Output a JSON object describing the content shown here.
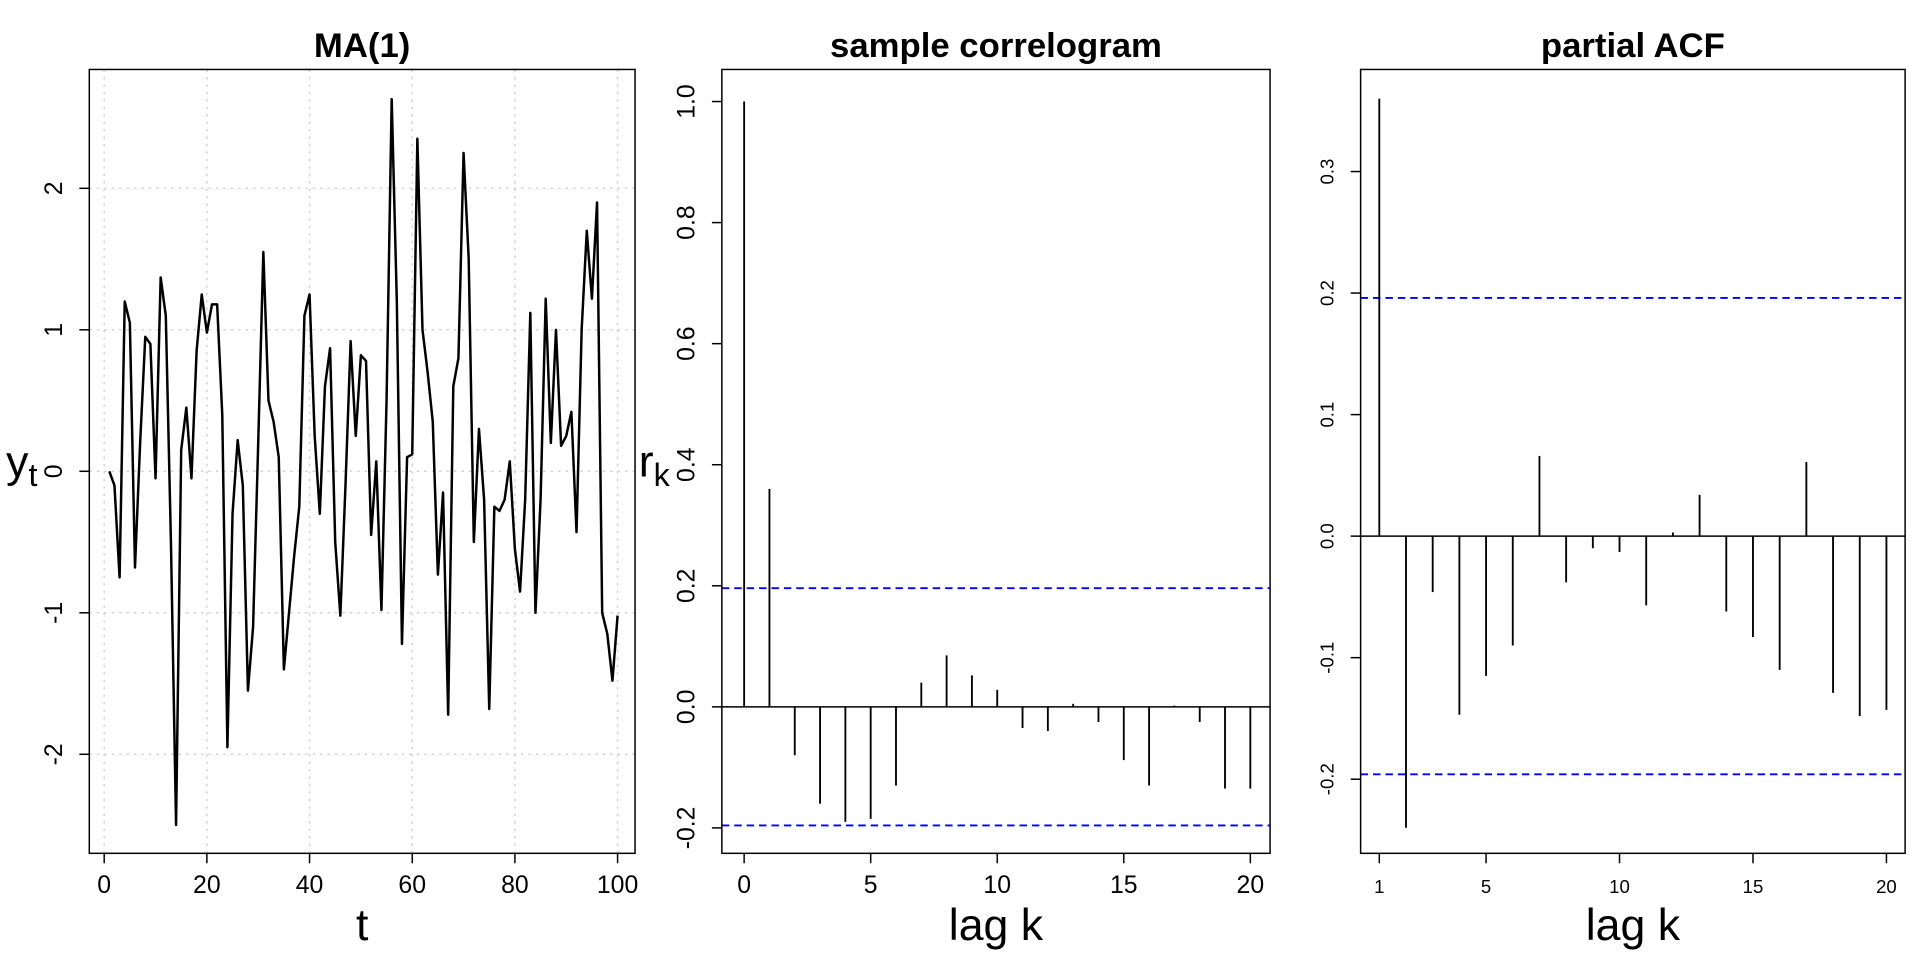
{
  "chart_data": [
    {
      "type": "line",
      "title": "MA(1)",
      "xlabel": "t",
      "ylabel": "y",
      "ylabel_sub": "t",
      "color": "#000000",
      "grid": true,
      "x": [
        1,
        2,
        3,
        4,
        5,
        6,
        7,
        8,
        9,
        10,
        11,
        12,
        13,
        14,
        15,
        16,
        17,
        18,
        19,
        20,
        21,
        22,
        23,
        24,
        25,
        26,
        27,
        28,
        29,
        30,
        31,
        32,
        33,
        34,
        35,
        36,
        37,
        38,
        39,
        40,
        41,
        42,
        43,
        44,
        45,
        46,
        47,
        48,
        49,
        50,
        51,
        52,
        53,
        54,
        55,
        56,
        57,
        58,
        59,
        60,
        61,
        62,
        63,
        64,
        65,
        66,
        67,
        68,
        69,
        70,
        71,
        72,
        73,
        74,
        75,
        76,
        77,
        78,
        79,
        80,
        81,
        82,
        83,
        84,
        85,
        86,
        87,
        88,
        89,
        90,
        91,
        92,
        93,
        94,
        95,
        96,
        97,
        98,
        99,
        100
      ],
      "values": [
        0.0,
        -0.1,
        -0.75,
        1.2,
        1.05,
        -0.68,
        0.2,
        0.95,
        0.9,
        -0.05,
        1.37,
        1.1,
        -0.5,
        -2.5,
        0.15,
        0.45,
        -0.05,
        0.85,
        1.25,
        0.98,
        1.18,
        1.18,
        0.4,
        -1.95,
        -0.3,
        0.22,
        -0.1,
        -1.55,
        -1.1,
        0.2,
        1.55,
        0.5,
        0.35,
        0.1,
        -1.4,
        -1.0,
        -0.6,
        -0.25,
        1.1,
        1.25,
        0.25,
        -0.3,
        0.6,
        0.87,
        -0.5,
        -1.02,
        -0.1,
        0.92,
        0.25,
        0.82,
        0.78,
        -0.45,
        0.07,
        -0.98,
        0.5,
        2.63,
        1.2,
        -1.22,
        0.1,
        0.12,
        2.35,
        1.0,
        0.7,
        0.35,
        -0.73,
        -0.15,
        -1.72,
        0.6,
        0.8,
        2.25,
        1.5,
        -0.5,
        0.3,
        -0.2,
        -1.68,
        -0.25,
        -0.28,
        -0.2,
        0.07,
        -0.55,
        -0.85,
        -0.2,
        1.12,
        -1.0,
        -0.2,
        1.22,
        0.2,
        1.0,
        0.18,
        0.25,
        0.42,
        -0.43,
        1.0,
        1.7,
        1.22,
        1.9,
        -1.0,
        -1.15,
        -1.48,
        -1.02
      ],
      "xlim": [
        -2.9,
        103.4
      ],
      "ylim": [
        -2.7,
        2.84
      ],
      "xticks": [
        0,
        20,
        40,
        60,
        80,
        100
      ],
      "yticks": [
        -2,
        -1,
        0,
        1,
        2
      ]
    },
    {
      "type": "bar",
      "title": "sample correlogram",
      "xlabel": "lag k",
      "ylabel": "r",
      "ylabel_sub": "k",
      "color": "#000000",
      "reference_lines": [
        0.196,
        -0.196
      ],
      "reference_color": "#0000ff",
      "x": [
        0,
        1,
        2,
        3,
        4,
        5,
        6,
        7,
        8,
        9,
        10,
        11,
        12,
        13,
        14,
        15,
        16,
        17,
        18,
        19,
        20
      ],
      "values": [
        1.0,
        0.36,
        -0.08,
        -0.16,
        -0.19,
        -0.185,
        -0.13,
        0.04,
        0.085,
        0.052,
        0.028,
        -0.035,
        -0.04,
        0.005,
        -0.025,
        -0.088,
        -0.13,
        0.002,
        -0.025,
        -0.135,
        -0.135
      ],
      "xlim": [
        -0.88,
        20.78
      ],
      "ylim": [
        -0.242,
        1.053
      ],
      "xticks": [
        0,
        5,
        10,
        15,
        20
      ],
      "yticks": [
        -0.2,
        {
          "value": 0,
          "label": "0.0"
        },
        0.2,
        0.4,
        0.6,
        0.8,
        {
          "value": 1,
          "label": "1.0"
        }
      ]
    },
    {
      "type": "bar",
      "title": "partial ACF",
      "xlabel": "lag k",
      "color": "#000000",
      "reference_lines": [
        0.196,
        -0.196
      ],
      "reference_color": "#0000ff",
      "x": [
        1,
        2,
        3,
        4,
        5,
        6,
        7,
        8,
        9,
        10,
        11,
        12,
        13,
        14,
        15,
        16,
        17,
        18,
        19,
        20
      ],
      "values": [
        0.36,
        -0.24,
        -0.046,
        -0.147,
        -0.115,
        -0.09,
        0.066,
        -0.038,
        -0.01,
        -0.013,
        -0.057,
        0.003,
        0.034,
        -0.062,
        -0.083,
        -0.11,
        0.061,
        -0.129,
        -0.148,
        -0.143
      ],
      "xlim": [
        0.3,
        20.7
      ],
      "ylim": [
        -0.261,
        0.384
      ],
      "xticks": [
        1,
        5,
        10,
        15,
        20
      ],
      "yticks": [
        -0.2,
        -0.1,
        {
          "value": 0,
          "label": "0.0"
        },
        0.1,
        0.2,
        0.3
      ]
    }
  ]
}
